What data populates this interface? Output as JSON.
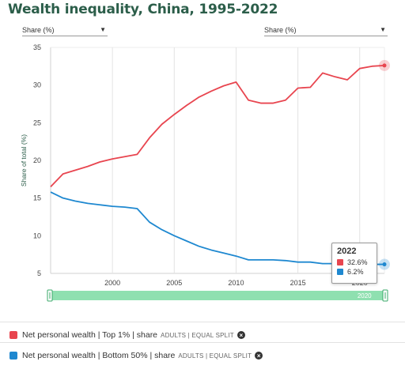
{
  "title": "Wealth inequality, China, 1995-2022",
  "dropdowns": {
    "left": "Share (%)",
    "right": "Share (%)"
  },
  "tooltip": {
    "year": "2022",
    "values": [
      "32.6%",
      "6.2%"
    ],
    "colors": [
      "#e8454f",
      "#1e88d0"
    ]
  },
  "legend": [
    {
      "label": "Net personal wealth | Top 1% | share",
      "tag": "ADULTS | EQUAL SPLIT",
      "color": "#e8454f"
    },
    {
      "label": "Net personal wealth | Bottom 50% | share",
      "tag": "ADULTS | EQUAL SPLIT",
      "color": "#1e88d0"
    }
  ],
  "colors": {
    "top": "#e8454f",
    "bottom": "#1e88d0",
    "slider": "#8fe0b0",
    "axis_title": "#2c5e4a"
  },
  "chart_data": {
    "type": "line",
    "title": "Wealth inequality, China, 1995-2022",
    "xlabel": "",
    "ylabel": "Share of total (%)",
    "xlim": [
      1995,
      2022
    ],
    "ylim": [
      5,
      35
    ],
    "xticks": [
      2000,
      2005,
      2010,
      2015,
      2020
    ],
    "yticks": [
      5,
      10,
      15,
      20,
      25,
      30,
      35
    ],
    "grid": "vertical",
    "series": [
      {
        "name": "Net personal wealth | Top 1% | share",
        "color": "#e8454f",
        "x": [
          1995,
          1996,
          1997,
          1998,
          1999,
          2000,
          2001,
          2002,
          2003,
          2004,
          2005,
          2006,
          2007,
          2008,
          2009,
          2010,
          2011,
          2012,
          2013,
          2014,
          2015,
          2016,
          2017,
          2018,
          2019,
          2020,
          2021,
          2022
        ],
        "y": [
          16.5,
          18.2,
          18.7,
          19.2,
          19.8,
          20.2,
          20.5,
          20.8,
          23.0,
          24.8,
          26.1,
          27.3,
          28.4,
          29.2,
          29.9,
          30.4,
          28.0,
          27.6,
          27.6,
          28.0,
          29.6,
          29.7,
          31.6,
          31.1,
          30.7,
          32.2,
          32.5,
          32.6
        ]
      },
      {
        "name": "Net personal wealth | Bottom 50% | share",
        "color": "#1e88d0",
        "x": [
          1995,
          1996,
          1997,
          1998,
          1999,
          2000,
          2001,
          2002,
          2003,
          2004,
          2005,
          2006,
          2007,
          2008,
          2009,
          2010,
          2011,
          2012,
          2013,
          2014,
          2015,
          2016,
          2017,
          2018,
          2019,
          2020,
          2021,
          2022
        ],
        "y": [
          15.8,
          15.0,
          14.6,
          14.3,
          14.1,
          13.9,
          13.8,
          13.6,
          11.8,
          10.8,
          10.0,
          9.3,
          8.6,
          8.1,
          7.7,
          7.3,
          6.8,
          6.8,
          6.8,
          6.7,
          6.5,
          6.5,
          6.3,
          6.3,
          6.5,
          6.2,
          6.2,
          6.2
        ]
      }
    ]
  }
}
